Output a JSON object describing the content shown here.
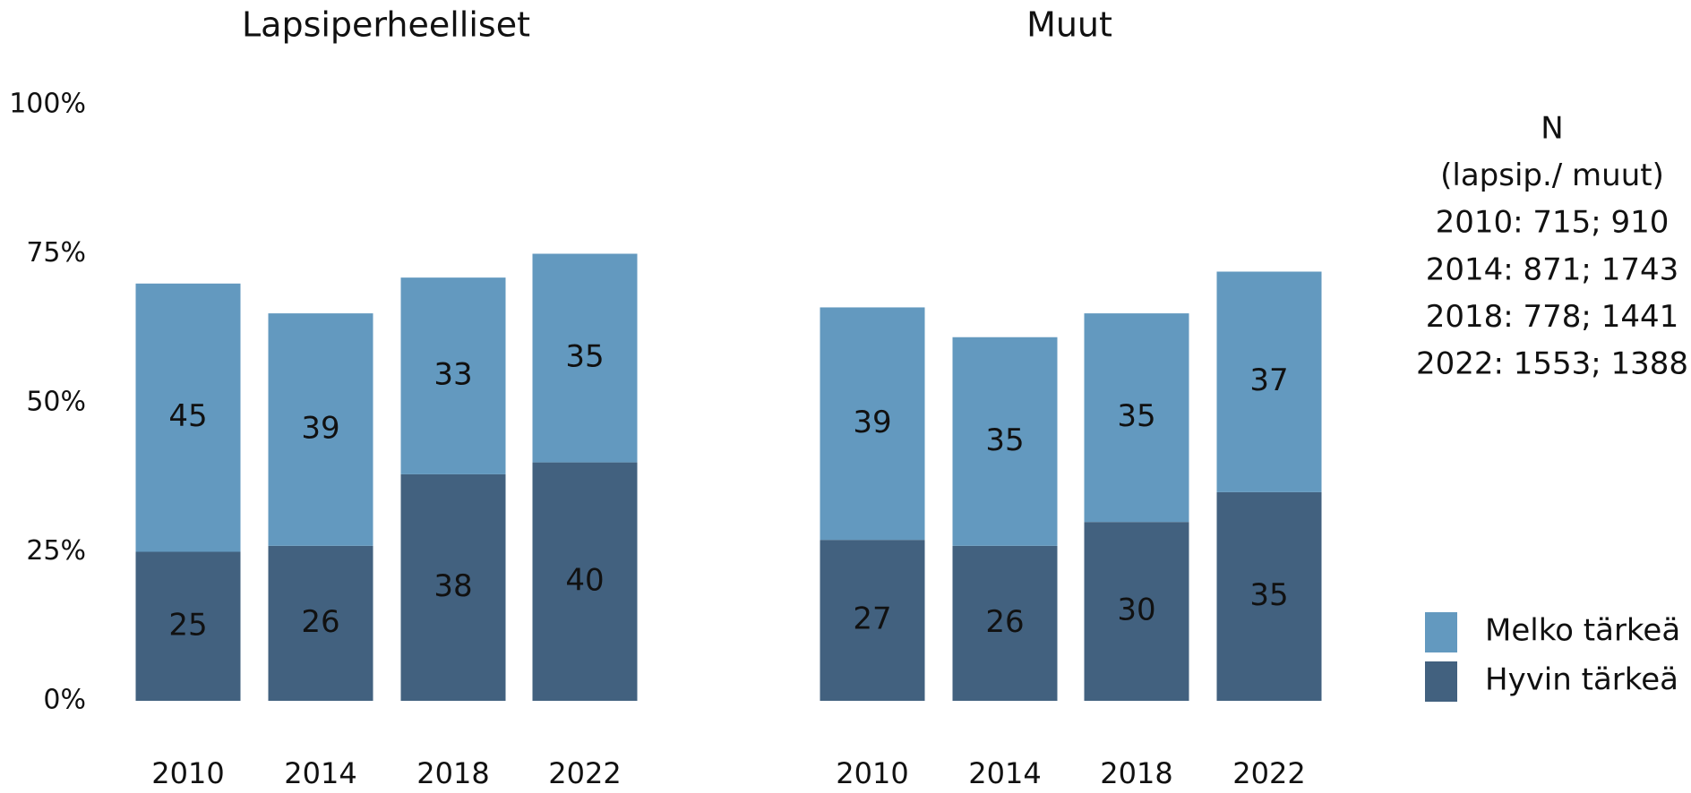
{
  "chart_data": [
    {
      "type": "stacked_bar",
      "title": "Lapsiperheelliset",
      "categories": [
        "2010",
        "2014",
        "2018",
        "2022"
      ],
      "series": [
        {
          "name": "Hyvin tärkeä",
          "color": "#42617f",
          "values": [
            25,
            26,
            38,
            40
          ]
        },
        {
          "name": "Melko tärkeä",
          "color": "#6399bf",
          "values": [
            45,
            39,
            33,
            35
          ]
        }
      ],
      "ylim": [
        0,
        100
      ],
      "yticks": [
        {
          "value": 0,
          "label": "0%"
        },
        {
          "value": 25,
          "label": "25%"
        },
        {
          "value": 50,
          "label": "50%"
        },
        {
          "value": 75,
          "label": "75%"
        },
        {
          "value": 100,
          "label": "100%"
        }
      ]
    },
    {
      "type": "stacked_bar",
      "title": "Muut",
      "categories": [
        "2010",
        "2014",
        "2018",
        "2022"
      ],
      "series": [
        {
          "name": "Hyvin tärkeä",
          "color": "#42617f",
          "values": [
            27,
            26,
            30,
            35
          ]
        },
        {
          "name": "Melko tärkeä",
          "color": "#6399bf",
          "values": [
            39,
            35,
            35,
            37
          ]
        }
      ],
      "ylim": [
        0,
        100
      ]
    }
  ],
  "note": [
    "N",
    "(lapsip./ muut)",
    "2010: 715; 910",
    "2014: 871; 1743",
    "2018: 778; 1441",
    "2022: 1553; 1388"
  ]
}
